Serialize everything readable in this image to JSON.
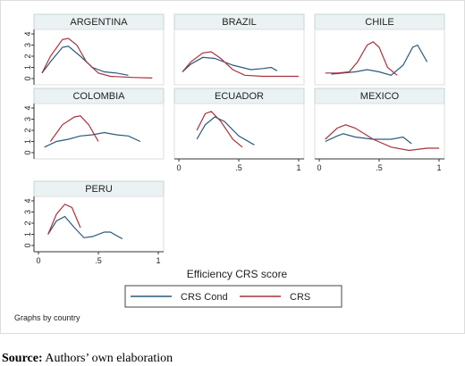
{
  "chart_data": [
    {
      "type": "line",
      "title": "ARGENTINA",
      "xlim": [
        0,
        1
      ],
      "ylim": [
        0,
        4
      ],
      "yticks": [
        0,
        1,
        2,
        3,
        4
      ],
      "series": [
        {
          "name": "CRS Cond",
          "color": "#2a5a7a",
          "x": [
            0.03,
            0.1,
            0.2,
            0.25,
            0.35,
            0.45,
            0.55,
            0.65,
            0.75
          ],
          "values": [
            0.5,
            1.5,
            2.8,
            2.9,
            2.0,
            1.0,
            0.6,
            0.5,
            0.3
          ]
        },
        {
          "name": "CRS",
          "color": "#a8323e",
          "x": [
            0.03,
            0.1,
            0.2,
            0.25,
            0.32,
            0.4,
            0.5,
            0.6,
            0.8,
            0.95
          ],
          "values": [
            0.5,
            2.0,
            3.5,
            3.6,
            3.0,
            1.5,
            0.5,
            0.2,
            0.1,
            0.05
          ]
        }
      ]
    },
    {
      "type": "line",
      "title": "BRAZIL",
      "xlim": [
        0,
        1
      ],
      "ylim": [
        0,
        4
      ],
      "series": [
        {
          "name": "CRS Cond",
          "color": "#2a5a7a",
          "x": [
            0.03,
            0.1,
            0.2,
            0.3,
            0.45,
            0.6,
            0.7,
            0.77,
            0.82
          ],
          "values": [
            0.6,
            1.3,
            1.9,
            1.8,
            1.2,
            0.8,
            0.9,
            1.0,
            0.7
          ]
        },
        {
          "name": "CRS",
          "color": "#a8323e",
          "x": [
            0.03,
            0.1,
            0.2,
            0.27,
            0.35,
            0.45,
            0.55,
            0.7,
            0.85,
            1.0
          ],
          "values": [
            0.6,
            1.5,
            2.3,
            2.4,
            1.8,
            0.8,
            0.3,
            0.2,
            0.2,
            0.2
          ]
        }
      ]
    },
    {
      "type": "line",
      "title": "CHILE",
      "xlim": [
        0,
        1
      ],
      "ylim": [
        0,
        4
      ],
      "series": [
        {
          "name": "CRS Cond",
          "color": "#2a5a7a",
          "x": [
            0.1,
            0.2,
            0.3,
            0.4,
            0.5,
            0.6,
            0.7,
            0.78,
            0.82,
            0.9
          ],
          "values": [
            0.4,
            0.5,
            0.6,
            0.8,
            0.6,
            0.3,
            1.2,
            2.8,
            3.0,
            1.5
          ]
        },
        {
          "name": "CRS",
          "color": "#a8323e",
          "x": [
            0.05,
            0.15,
            0.25,
            0.32,
            0.4,
            0.45,
            0.5,
            0.57,
            0.65
          ],
          "values": [
            0.5,
            0.5,
            0.6,
            1.5,
            3.0,
            3.3,
            2.8,
            1.0,
            0.3
          ]
        }
      ]
    },
    {
      "type": "line",
      "title": "COLOMBIA",
      "xlim": [
        0,
        1
      ],
      "ylim": [
        0,
        4
      ],
      "yticks": [
        0,
        1,
        2,
        3,
        4
      ],
      "series": [
        {
          "name": "CRS Cond",
          "color": "#2a5a7a",
          "x": [
            0.05,
            0.15,
            0.25,
            0.35,
            0.45,
            0.55,
            0.65,
            0.75,
            0.85
          ],
          "values": [
            0.5,
            1.0,
            1.2,
            1.5,
            1.6,
            1.8,
            1.6,
            1.5,
            1.0
          ]
        },
        {
          "name": "CRS",
          "color": "#a8323e",
          "x": [
            0.1,
            0.2,
            0.3,
            0.35,
            0.42,
            0.5
          ],
          "values": [
            1.0,
            2.5,
            3.2,
            3.3,
            2.5,
            1.0
          ]
        }
      ]
    },
    {
      "type": "line",
      "title": "ECUADOR",
      "xlim": [
        0,
        1
      ],
      "ylim": [
        0,
        4
      ],
      "xticks": [
        0,
        {
          "value": 0.5,
          "label": ".5"
        },
        1
      ],
      "series": [
        {
          "name": "CRS Cond",
          "color": "#2a5a7a",
          "x": [
            0.15,
            0.22,
            0.3,
            0.38,
            0.5,
            0.63
          ],
          "values": [
            1.2,
            2.5,
            3.2,
            2.8,
            1.5,
            0.7
          ]
        },
        {
          "name": "CRS",
          "color": "#a8323e",
          "x": [
            0.15,
            0.22,
            0.27,
            0.35,
            0.45,
            0.53
          ],
          "values": [
            2.0,
            3.5,
            3.7,
            2.8,
            1.2,
            0.5
          ]
        }
      ]
    },
    {
      "type": "line",
      "title": "MEXICO",
      "xlim": [
        0,
        1
      ],
      "ylim": [
        0,
        4
      ],
      "xticks": [
        0,
        {
          "value": 0.5,
          "label": ".5"
        },
        1
      ],
      "series": [
        {
          "name": "CRS Cond",
          "color": "#2a5a7a",
          "x": [
            0.05,
            0.15,
            0.2,
            0.3,
            0.45,
            0.6,
            0.7,
            0.77
          ],
          "values": [
            1.0,
            1.5,
            1.7,
            1.4,
            1.2,
            1.2,
            1.4,
            0.8
          ]
        },
        {
          "name": "CRS",
          "color": "#a8323e",
          "x": [
            0.05,
            0.15,
            0.22,
            0.3,
            0.45,
            0.6,
            0.75,
            0.9,
            1.0
          ],
          "values": [
            1.2,
            2.2,
            2.5,
            2.2,
            1.2,
            0.5,
            0.2,
            0.4,
            0.4
          ]
        }
      ]
    },
    {
      "type": "line",
      "title": "PERU",
      "xlim": [
        0,
        1
      ],
      "ylim": [
        0,
        4
      ],
      "yticks": [
        0,
        1,
        2,
        3,
        4
      ],
      "xticks": [
        0,
        {
          "value": 0.5,
          "label": ".5"
        },
        1
      ],
      "series": [
        {
          "name": "CRS Cond",
          "color": "#2a5a7a",
          "x": [
            0.08,
            0.15,
            0.22,
            0.3,
            0.38,
            0.45,
            0.55,
            0.6,
            0.7
          ],
          "values": [
            1.0,
            2.2,
            2.6,
            1.6,
            0.7,
            0.8,
            1.2,
            1.2,
            0.6
          ]
        },
        {
          "name": "CRS",
          "color": "#a8323e",
          "x": [
            0.08,
            0.15,
            0.22,
            0.28,
            0.35
          ],
          "values": [
            1.0,
            2.8,
            3.7,
            3.4,
            1.6
          ]
        }
      ]
    }
  ],
  "figure": {
    "x_label": "Efficiency CRS score",
    "note": "Graphs by country",
    "source_label": "Source:",
    "source_text": " Authors’ own elaboration"
  }
}
